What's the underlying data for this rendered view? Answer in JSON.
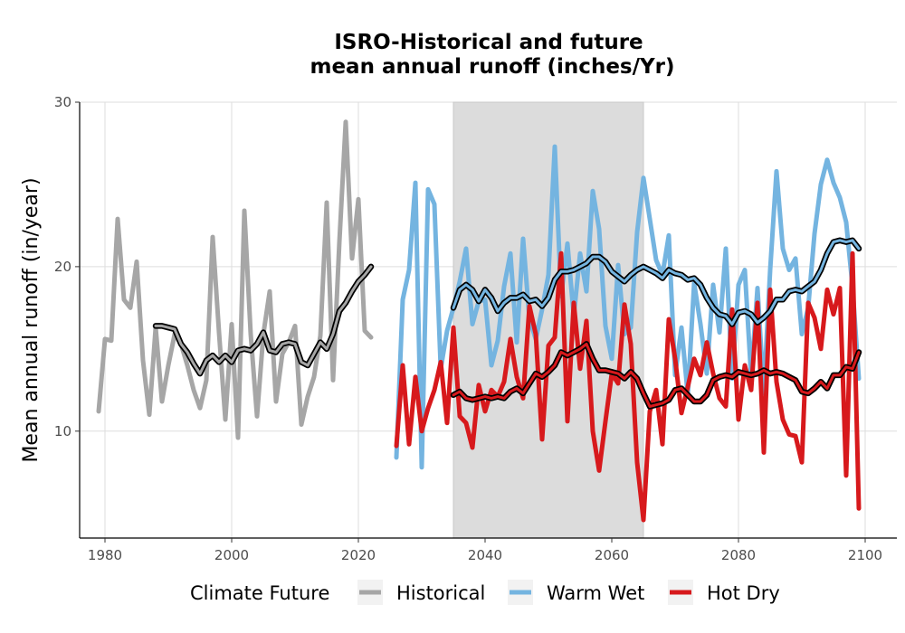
{
  "chart_data": {
    "type": "line",
    "title": [
      "ISRO-Historical and future",
      "mean annual runoff (inches/Yr)"
    ],
    "xlabel": "",
    "ylabel": "Mean annual runoff (in/year)",
    "xlim": [
      1976,
      2105
    ],
    "ylim": [
      3.5,
      30
    ],
    "x_ticks": [
      1980,
      2000,
      2020,
      2040,
      2060,
      2080,
      2100
    ],
    "y_ticks": [
      10,
      20,
      30
    ],
    "grid": true,
    "shaded_region": [
      2035,
      2065
    ],
    "legend": {
      "title": "Climate Future",
      "placement": "bottom",
      "entries": [
        "Historical",
        "Warm Wet",
        "Hot Dry"
      ]
    },
    "colors": {
      "Historical": "#a6a6a6",
      "Warm Wet": "#74b4e0",
      "Hot Dry": "#d7191c",
      "shade": "#dcdcdc",
      "smooth": "#000000"
    },
    "series": [
      {
        "name": "Historical",
        "x": [
          1979,
          1980,
          1981,
          1982,
          1983,
          1984,
          1985,
          1986,
          1987,
          1988,
          1989,
          1990,
          1991,
          1992,
          1993,
          1994,
          1995,
          1996,
          1997,
          1998,
          1999,
          2000,
          2001,
          2002,
          2003,
          2004,
          2005,
          2006,
          2007,
          2008,
          2009,
          2010,
          2011,
          2012,
          2013,
          2014,
          2015,
          2016,
          2017,
          2018,
          2019,
          2020,
          2021,
          2022
        ],
        "values": [
          11.2,
          15.6,
          15.5,
          22.9,
          18.0,
          17.5,
          20.3,
          14.3,
          11.0,
          16.3,
          11.8,
          14.0,
          15.9,
          15.3,
          14.0,
          12.5,
          11.4,
          13.1,
          21.8,
          16.0,
          10.7,
          16.5,
          9.6,
          23.4,
          15.9,
          10.9,
          15.9,
          18.5,
          11.8,
          14.7,
          15.4,
          16.4,
          10.4,
          12.1,
          13.3,
          15.8,
          23.9,
          13.1,
          21.5,
          28.8,
          20.5,
          24.1,
          16.1,
          15.7
        ]
      },
      {
        "name": "Warm Wet",
        "x": [
          2026,
          2027,
          2028,
          2029,
          2030,
          2031,
          2032,
          2033,
          2034,
          2035,
          2036,
          2037,
          2038,
          2039,
          2040,
          2041,
          2042,
          2043,
          2044,
          2045,
          2046,
          2047,
          2048,
          2049,
          2050,
          2051,
          2052,
          2053,
          2054,
          2055,
          2056,
          2057,
          2058,
          2059,
          2060,
          2061,
          2062,
          2063,
          2064,
          2065,
          2066,
          2067,
          2068,
          2069,
          2070,
          2071,
          2072,
          2073,
          2074,
          2075,
          2076,
          2077,
          2078,
          2079,
          2080,
          2081,
          2082,
          2083,
          2084,
          2085,
          2086,
          2087,
          2088,
          2089,
          2090,
          2091,
          2092,
          2093,
          2094,
          2095,
          2096,
          2097,
          2098,
          2099
        ],
        "values": [
          8.4,
          18.0,
          19.8,
          25.1,
          7.8,
          24.7,
          23.8,
          13.8,
          16.1,
          17.5,
          19.1,
          21.1,
          16.5,
          17.9,
          18.0,
          14.0,
          15.5,
          18.8,
          20.8,
          15.4,
          21.7,
          16.8,
          15.6,
          17.4,
          19.5,
          27.3,
          18.2,
          21.4,
          17.0,
          20.8,
          18.5,
          24.6,
          22.3,
          16.4,
          14.4,
          20.1,
          15.9,
          16.3,
          22.1,
          25.4,
          22.9,
          20.4,
          19.5,
          21.9,
          13.4,
          16.3,
          12.2,
          19.0,
          16.5,
          13.5,
          18.9,
          16.0,
          21.1,
          13.2,
          18.9,
          19.8,
          13.3,
          18.7,
          12.3,
          19.8,
          25.8,
          21.1,
          19.8,
          20.5,
          15.9,
          17.5,
          22.0,
          25.0,
          26.5,
          25.1,
          24.2,
          22.7,
          18.8,
          13.2
        ]
      },
      {
        "name": "Hot Dry",
        "x": [
          2026,
          2027,
          2028,
          2029,
          2030,
          2031,
          2032,
          2033,
          2034,
          2035,
          2036,
          2037,
          2038,
          2039,
          2040,
          2041,
          2042,
          2043,
          2044,
          2045,
          2046,
          2047,
          2048,
          2049,
          2050,
          2051,
          2052,
          2053,
          2054,
          2055,
          2056,
          2057,
          2058,
          2059,
          2060,
          2061,
          2062,
          2063,
          2064,
          2065,
          2066,
          2067,
          2068,
          2069,
          2070,
          2071,
          2072,
          2073,
          2074,
          2075,
          2076,
          2077,
          2078,
          2079,
          2080,
          2081,
          2082,
          2083,
          2084,
          2085,
          2086,
          2087,
          2088,
          2089,
          2090,
          2091,
          2092,
          2093,
          2094,
          2095,
          2096,
          2097,
          2098,
          2099
        ],
        "values": [
          9.1,
          14.0,
          9.2,
          13.3,
          10.0,
          11.4,
          12.5,
          14.2,
          10.5,
          16.3,
          10.9,
          10.5,
          9.0,
          12.8,
          11.2,
          12.5,
          12.1,
          13.0,
          15.6,
          13.3,
          12.0,
          17.6,
          15.9,
          9.5,
          15.2,
          15.7,
          20.8,
          10.6,
          17.8,
          13.8,
          16.7,
          10.0,
          7.6,
          10.6,
          13.5,
          12.9,
          17.7,
          15.3,
          8.1,
          4.6,
          11.2,
          12.5,
          9.2,
          16.8,
          14.4,
          11.1,
          12.7,
          14.4,
          13.4,
          15.4,
          13.5,
          12.0,
          11.5,
          17.4,
          10.7,
          14.0,
          12.5,
          17.8,
          8.7,
          18.6,
          13.0,
          10.7,
          9.8,
          9.7,
          8.1,
          17.8,
          16.9,
          15.0,
          18.6,
          17.1,
          18.7,
          7.3,
          20.8,
          5.3
        ]
      },
      {
        "name": "",
        "x": [
          1988,
          1989,
          1990,
          1991,
          1992,
          1993,
          1994,
          1995,
          1996,
          1997,
          1998,
          1999,
          2000,
          2001,
          2002,
          2003,
          2004,
          2005,
          2006,
          2007,
          2008,
          2009,
          2010,
          2011,
          2012,
          2013,
          2014,
          2015,
          2016,
          2017,
          2018,
          2019,
          2020,
          2021,
          2022
        ],
        "values": [
          16.4,
          16.4,
          16.3,
          16.2,
          15.3,
          14.8,
          14.1,
          13.5,
          14.3,
          14.6,
          14.2,
          14.6,
          14.2,
          14.9,
          15.0,
          14.9,
          15.3,
          16.0,
          14.9,
          14.8,
          15.3,
          15.4,
          15.3,
          14.2,
          14.0,
          14.7,
          15.4,
          15.0,
          15.9,
          17.3,
          17.8,
          18.5,
          19.1,
          19.5,
          20.0
        ]
      },
      {
        "name": "",
        "x": [
          2035,
          2036,
          2037,
          2038,
          2039,
          2040,
          2041,
          2042,
          2043,
          2044,
          2045,
          2046,
          2047,
          2048,
          2049,
          2050,
          2051,
          2052,
          2053,
          2054,
          2055,
          2056,
          2057,
          2058,
          2059,
          2060,
          2061,
          2062,
          2063,
          2064,
          2065,
          2066,
          2067,
          2068,
          2069,
          2070,
          2071,
          2072,
          2073,
          2074,
          2075,
          2076,
          2077,
          2078,
          2079,
          2080,
          2081,
          2082,
          2083,
          2084,
          2085,
          2086,
          2087,
          2088,
          2089,
          2090,
          2091,
          2092,
          2093,
          2094,
          2095,
          2096,
          2097,
          2098,
          2099
        ],
        "values": [
          17.5,
          18.6,
          18.9,
          18.6,
          17.9,
          18.6,
          18.1,
          17.3,
          17.8,
          18.1,
          18.1,
          18.3,
          17.9,
          18.0,
          17.6,
          18.1,
          19.2,
          19.7,
          19.7,
          19.8,
          20.0,
          20.2,
          20.6,
          20.6,
          20.3,
          19.7,
          19.4,
          19.1,
          19.5,
          19.8,
          20.0,
          19.8,
          19.6,
          19.3,
          19.8,
          19.6,
          19.5,
          19.2,
          19.3,
          18.9,
          18.1,
          17.5,
          17.1,
          17.0,
          16.5,
          17.2,
          17.3,
          17.1,
          16.6,
          16.9,
          17.3,
          18.0,
          18.0,
          18.5,
          18.6,
          18.5,
          18.8,
          19.1,
          19.8,
          20.8,
          21.5,
          21.6,
          21.5,
          21.6,
          21.1
        ]
      },
      {
        "name": "",
        "x": [
          2035,
          2036,
          2037,
          2038,
          2039,
          2040,
          2041,
          2042,
          2043,
          2044,
          2045,
          2046,
          2047,
          2048,
          2049,
          2050,
          2051,
          2052,
          2053,
          2054,
          2055,
          2056,
          2057,
          2058,
          2059,
          2060,
          2061,
          2062,
          2063,
          2064,
          2065,
          2066,
          2067,
          2068,
          2069,
          2070,
          2071,
          2072,
          2073,
          2074,
          2075,
          2076,
          2077,
          2078,
          2079,
          2080,
          2081,
          2082,
          2083,
          2084,
          2085,
          2086,
          2087,
          2088,
          2089,
          2090,
          2091,
          2092,
          2093,
          2094,
          2095,
          2096,
          2097,
          2098,
          2099
        ],
        "values": [
          12.2,
          12.4,
          12.0,
          11.9,
          12.0,
          12.1,
          12.0,
          12.1,
          12.0,
          12.4,
          12.6,
          12.3,
          12.9,
          13.5,
          13.3,
          13.6,
          14.0,
          14.8,
          14.6,
          14.8,
          15.0,
          15.3,
          14.4,
          13.7,
          13.7,
          13.6,
          13.5,
          13.2,
          13.6,
          13.2,
          12.3,
          11.5,
          11.6,
          11.7,
          11.9,
          12.5,
          12.6,
          12.2,
          11.8,
          11.8,
          12.2,
          13.1,
          13.3,
          13.4,
          13.3,
          13.6,
          13.5,
          13.4,
          13.5,
          13.7,
          13.5,
          13.6,
          13.5,
          13.3,
          13.1,
          12.4,
          12.3,
          12.6,
          13.0,
          12.6,
          13.4,
          13.4,
          13.9,
          13.8,
          14.8
        ]
      }
    ]
  }
}
